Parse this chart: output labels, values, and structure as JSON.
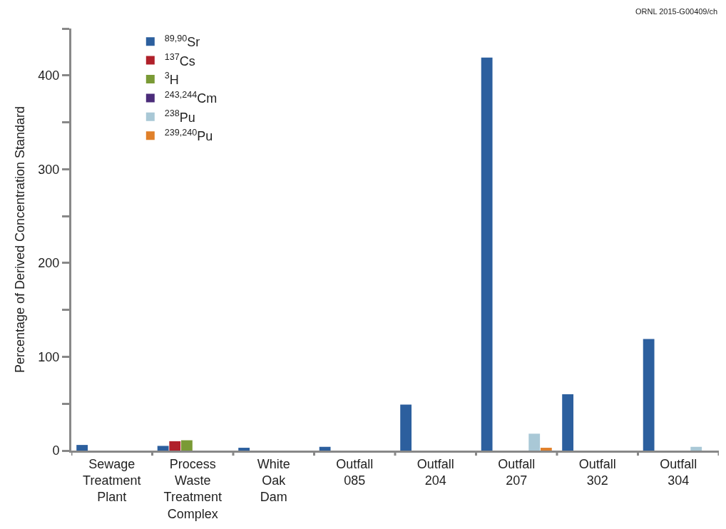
{
  "chart_data": {
    "type": "bar",
    "ylabel": "Percentage of Derived Concentration Standard",
    "categories": [
      "Sewage\nTreatment\nPlant",
      "Process\nWaste\nTreatment\nComplex",
      "White\nOak\nDam",
      "Outfall\n085",
      "Outfall\n204",
      "Outfall\n207",
      "Outfall\n302",
      "Outfall\n304"
    ],
    "series": [
      {
        "name": "$^{89,90}$Sr",
        "color": "#2c5f9e",
        "values": [
          6,
          5,
          3,
          4,
          49,
          419,
          60,
          119
        ]
      },
      {
        "name": "$^{137}$Cs",
        "color": "#b0202a",
        "values": [
          null,
          10,
          null,
          null,
          null,
          null,
          null,
          null
        ]
      },
      {
        "name": "$^{3}$H",
        "color": "#7a9a35",
        "values": [
          null,
          11,
          null,
          null,
          null,
          null,
          null,
          null
        ]
      },
      {
        "name": "$^{243,244}$Cm",
        "color": "#4b2c7a",
        "values": [
          null,
          null,
          null,
          null,
          null,
          null,
          null,
          null
        ]
      },
      {
        "name": "$^{238}$Pu",
        "color": "#a9c8d6",
        "values": [
          null,
          null,
          null,
          null,
          null,
          18,
          null,
          4
        ]
      },
      {
        "name": "$^{239,240}$Pu",
        "color": "#e0802a",
        "values": [
          null,
          null,
          null,
          null,
          null,
          3,
          null,
          null
        ]
      }
    ],
    "ylim": [
      0,
      450
    ],
    "yticks": [
      0,
      {
        "value": 50,
        "label": null
      },
      100,
      {
        "value": 150,
        "label": null
      },
      200,
      {
        "value": 250,
        "label": null
      },
      300,
      {
        "value": 350,
        "label": null
      },
      400,
      {
        "value": 450,
        "label": null
      }
    ],
    "legend": "top left",
    "annotations": [
      "ORNL 2015-G00409/ch"
    ]
  }
}
